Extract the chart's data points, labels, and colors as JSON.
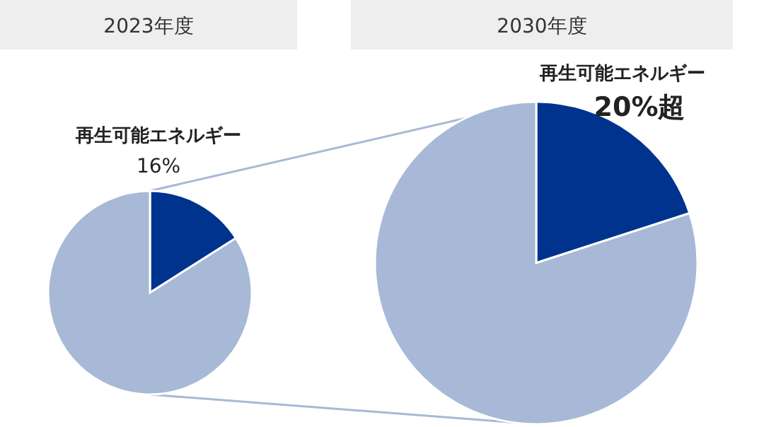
{
  "chart_data": [
    {
      "type": "pie",
      "title": "2023年度",
      "categories": [
        "再生可能エネルギー",
        null
      ],
      "values": [
        16,
        84
      ],
      "colors": [
        "#00338d",
        "#a7b9d6"
      ],
      "value_labels": [
        "16%",
        null
      ]
    },
    {
      "type": "pie",
      "title": "2030年度",
      "categories": [
        "再生可能エネルギー",
        null
      ],
      "values": [
        20,
        80
      ],
      "colors": [
        "#00338d",
        "#a7b9d6"
      ],
      "value_labels": [
        "20%超",
        null
      ]
    }
  ]
}
